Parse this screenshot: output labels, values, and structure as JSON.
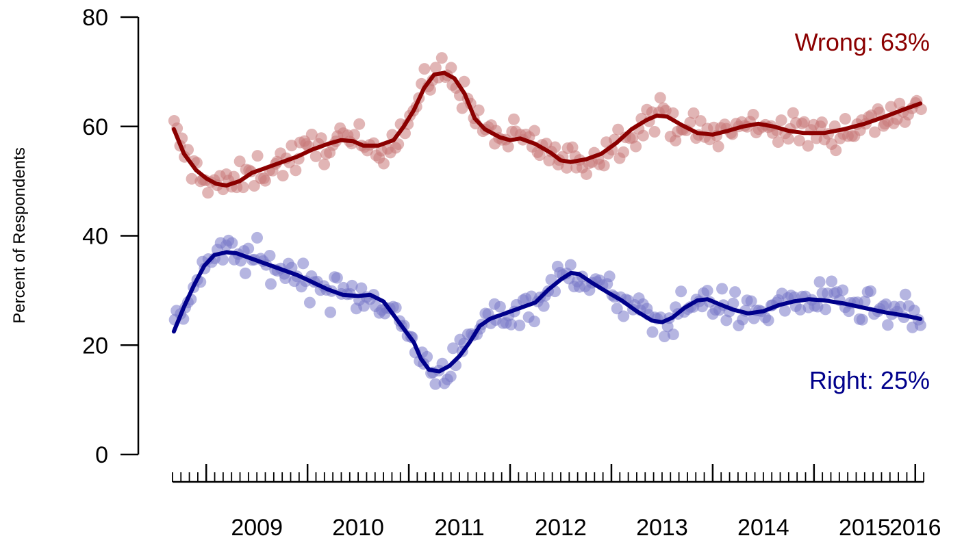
{
  "chart_data": {
    "type": "scatter",
    "title": "",
    "xlabel": "",
    "ylabel": "Percent of Respondents",
    "ylim": [
      0,
      80
    ],
    "yticks": [
      0,
      20,
      40,
      60,
      80
    ],
    "xlim": [
      2008.62,
      2016.13
    ],
    "xticks": [
      "2009",
      "2010",
      "2011",
      "2012",
      "2013",
      "2014",
      "2015",
      "2016"
    ],
    "grid": false,
    "legend": "none",
    "series": [
      {
        "name": "Wrong",
        "color": "#8b0000",
        "point_color": "#c87878",
        "annotation": "Wrong: 63%",
        "trend": [
          [
            2008.68,
            59.5
          ],
          [
            2008.78,
            55.0
          ],
          [
            2008.9,
            52.0
          ],
          [
            2009.0,
            50.5
          ],
          [
            2009.1,
            49.5
          ],
          [
            2009.2,
            49.2
          ],
          [
            2009.33,
            50.0
          ],
          [
            2009.45,
            51.5
          ],
          [
            2009.6,
            52.5
          ],
          [
            2009.75,
            53.5
          ],
          [
            2009.9,
            54.5
          ],
          [
            2010.05,
            55.8
          ],
          [
            2010.2,
            56.8
          ],
          [
            2010.33,
            57.5
          ],
          [
            2010.45,
            57.3
          ],
          [
            2010.55,
            56.5
          ],
          [
            2010.7,
            56.5
          ],
          [
            2010.85,
            57.5
          ],
          [
            2010.95,
            60.0
          ],
          [
            2011.05,
            63.0
          ],
          [
            2011.15,
            67.0
          ],
          [
            2011.25,
            69.5
          ],
          [
            2011.35,
            69.8
          ],
          [
            2011.45,
            68.8
          ],
          [
            2011.55,
            66.0
          ],
          [
            2011.65,
            61.5
          ],
          [
            2011.75,
            59.5
          ],
          [
            2011.9,
            58.0
          ],
          [
            2012.0,
            57.5
          ],
          [
            2012.1,
            57.8
          ],
          [
            2012.25,
            56.8
          ],
          [
            2012.4,
            55.2
          ],
          [
            2012.5,
            53.8
          ],
          [
            2012.6,
            53.5
          ],
          [
            2012.75,
            54.0
          ],
          [
            2012.9,
            55.0
          ],
          [
            2013.05,
            57.0
          ],
          [
            2013.2,
            59.5
          ],
          [
            2013.35,
            61.2
          ],
          [
            2013.45,
            62.0
          ],
          [
            2013.55,
            61.8
          ],
          [
            2013.7,
            60.2
          ],
          [
            2013.85,
            58.8
          ],
          [
            2014.0,
            58.5
          ],
          [
            2014.15,
            59.2
          ],
          [
            2014.3,
            60.0
          ],
          [
            2014.45,
            60.5
          ],
          [
            2014.6,
            60.0
          ],
          [
            2014.75,
            59.2
          ],
          [
            2014.9,
            58.8
          ],
          [
            2015.1,
            58.8
          ],
          [
            2015.3,
            59.5
          ],
          [
            2015.5,
            60.5
          ],
          [
            2015.7,
            61.8
          ],
          [
            2015.9,
            63.2
          ],
          [
            2016.05,
            64.2
          ]
        ]
      },
      {
        "name": "Right",
        "color": "#00008b",
        "point_color": "#7878c8",
        "annotation": "Right: 25%",
        "trend": [
          [
            2008.68,
            22.5
          ],
          [
            2008.78,
            27.0
          ],
          [
            2008.88,
            31.0
          ],
          [
            2008.98,
            34.5
          ],
          [
            2009.08,
            36.5
          ],
          [
            2009.2,
            37.0
          ],
          [
            2009.3,
            36.8
          ],
          [
            2009.45,
            35.8
          ],
          [
            2009.6,
            34.8
          ],
          [
            2009.75,
            33.8
          ],
          [
            2009.9,
            32.8
          ],
          [
            2010.05,
            31.5
          ],
          [
            2010.2,
            30.2
          ],
          [
            2010.35,
            29.2
          ],
          [
            2010.5,
            29.0
          ],
          [
            2010.62,
            29.2
          ],
          [
            2010.75,
            28.0
          ],
          [
            2010.85,
            25.5
          ],
          [
            2010.95,
            23.0
          ],
          [
            2011.05,
            20.5
          ],
          [
            2011.12,
            17.5
          ],
          [
            2011.2,
            15.5
          ],
          [
            2011.3,
            15.2
          ],
          [
            2011.4,
            16.2
          ],
          [
            2011.5,
            18.0
          ],
          [
            2011.6,
            20.5
          ],
          [
            2011.7,
            23.5
          ],
          [
            2011.8,
            24.8
          ],
          [
            2011.95,
            25.8
          ],
          [
            2012.1,
            26.8
          ],
          [
            2012.25,
            27.8
          ],
          [
            2012.38,
            30.2
          ],
          [
            2012.5,
            32.0
          ],
          [
            2012.6,
            33.2
          ],
          [
            2012.68,
            33.0
          ],
          [
            2012.8,
            31.5
          ],
          [
            2012.95,
            29.8
          ],
          [
            2013.1,
            28.2
          ],
          [
            2013.25,
            26.2
          ],
          [
            2013.4,
            24.5
          ],
          [
            2013.5,
            24.2
          ],
          [
            2013.6,
            25.0
          ],
          [
            2013.72,
            26.8
          ],
          [
            2013.85,
            28.2
          ],
          [
            2013.95,
            28.4
          ],
          [
            2014.05,
            27.6
          ],
          [
            2014.2,
            26.5
          ],
          [
            2014.35,
            25.8
          ],
          [
            2014.5,
            26.2
          ],
          [
            2014.65,
            27.3
          ],
          [
            2014.8,
            28.0
          ],
          [
            2014.95,
            28.4
          ],
          [
            2015.1,
            28.2
          ],
          [
            2015.3,
            27.6
          ],
          [
            2015.5,
            26.8
          ],
          [
            2015.7,
            26.0
          ],
          [
            2015.9,
            25.4
          ],
          [
            2016.05,
            24.8
          ]
        ]
      }
    ]
  }
}
